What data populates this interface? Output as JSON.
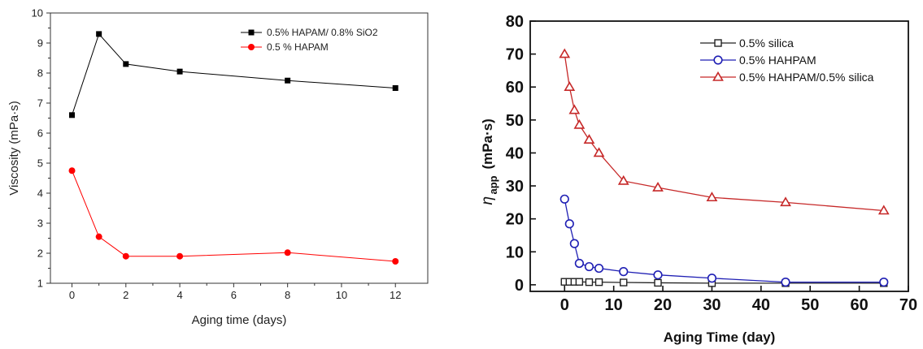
{
  "chart_data": [
    {
      "type": "line",
      "xlabel": "Aging time (days)",
      "ylabel": "Viscosity (mPa·s)",
      "xlim": [
        -0.8,
        13.2
      ],
      "ylim": [
        1,
        10
      ],
      "xticks": [
        0,
        2,
        4,
        6,
        8,
        10,
        12
      ],
      "yticks": [
        1,
        2,
        3,
        4,
        5,
        6,
        7,
        8,
        9,
        10
      ],
      "legend_position": "top-right",
      "grid": false,
      "series": [
        {
          "name": "0.5% HAPAM/ 0.8% SiO2",
          "color": "#000000",
          "marker": "square-filled",
          "x": [
            0,
            1,
            2,
            4,
            8,
            12
          ],
          "y": [
            6.6,
            9.3,
            8.3,
            8.05,
            7.75,
            7.5
          ]
        },
        {
          "name": "0.5 % HAPAM",
          "color": "#ff0000",
          "marker": "circle-filled",
          "x": [
            0,
            1,
            2,
            4,
            8,
            12
          ],
          "y": [
            4.75,
            2.55,
            1.9,
            1.9,
            2.02,
            1.73
          ]
        }
      ]
    },
    {
      "type": "line",
      "xlabel": "Aging Time (day)",
      "ylabel": "η",
      "ylabel_sub": "app",
      "ylabel_unit": "(mPa·s)",
      "xlim": [
        -7,
        70
      ],
      "ylim": [
        -2,
        80
      ],
      "xticks": [
        0,
        10,
        20,
        30,
        40,
        50,
        60,
        70
      ],
      "yticks": [
        0,
        10,
        20,
        30,
        40,
        50,
        60,
        70,
        80
      ],
      "legend_position": "top-right",
      "grid": false,
      "series": [
        {
          "name": "0.5% silica",
          "color": "#222222",
          "marker": "square-open",
          "x": [
            0,
            1,
            2,
            3,
            5,
            7,
            12,
            19,
            30,
            45,
            65
          ],
          "y": [
            0.9,
            0.9,
            0.9,
            0.9,
            0.8,
            0.8,
            0.7,
            0.6,
            0.5,
            0.5,
            0.5
          ]
        },
        {
          "name": "0.5% HAHPAM",
          "color": "#1f1fb4",
          "marker": "circle-open",
          "x": [
            0,
            1,
            2,
            3,
            5,
            7,
            12,
            19,
            30,
            45,
            65
          ],
          "y": [
            26,
            18.5,
            12.5,
            6.5,
            5.5,
            5,
            4,
            3,
            2,
            0.8,
            0.8
          ]
        },
        {
          "name": "0.5% HAHPAM/0.5% silica",
          "color": "#c62828",
          "marker": "triangle-open",
          "x": [
            0,
            1,
            2,
            3,
            5,
            7,
            12,
            19,
            30,
            45,
            65
          ],
          "y": [
            70,
            60,
            53,
            48.5,
            44,
            40,
            31.5,
            29.5,
            26.5,
            25,
            22.5
          ]
        }
      ]
    }
  ]
}
